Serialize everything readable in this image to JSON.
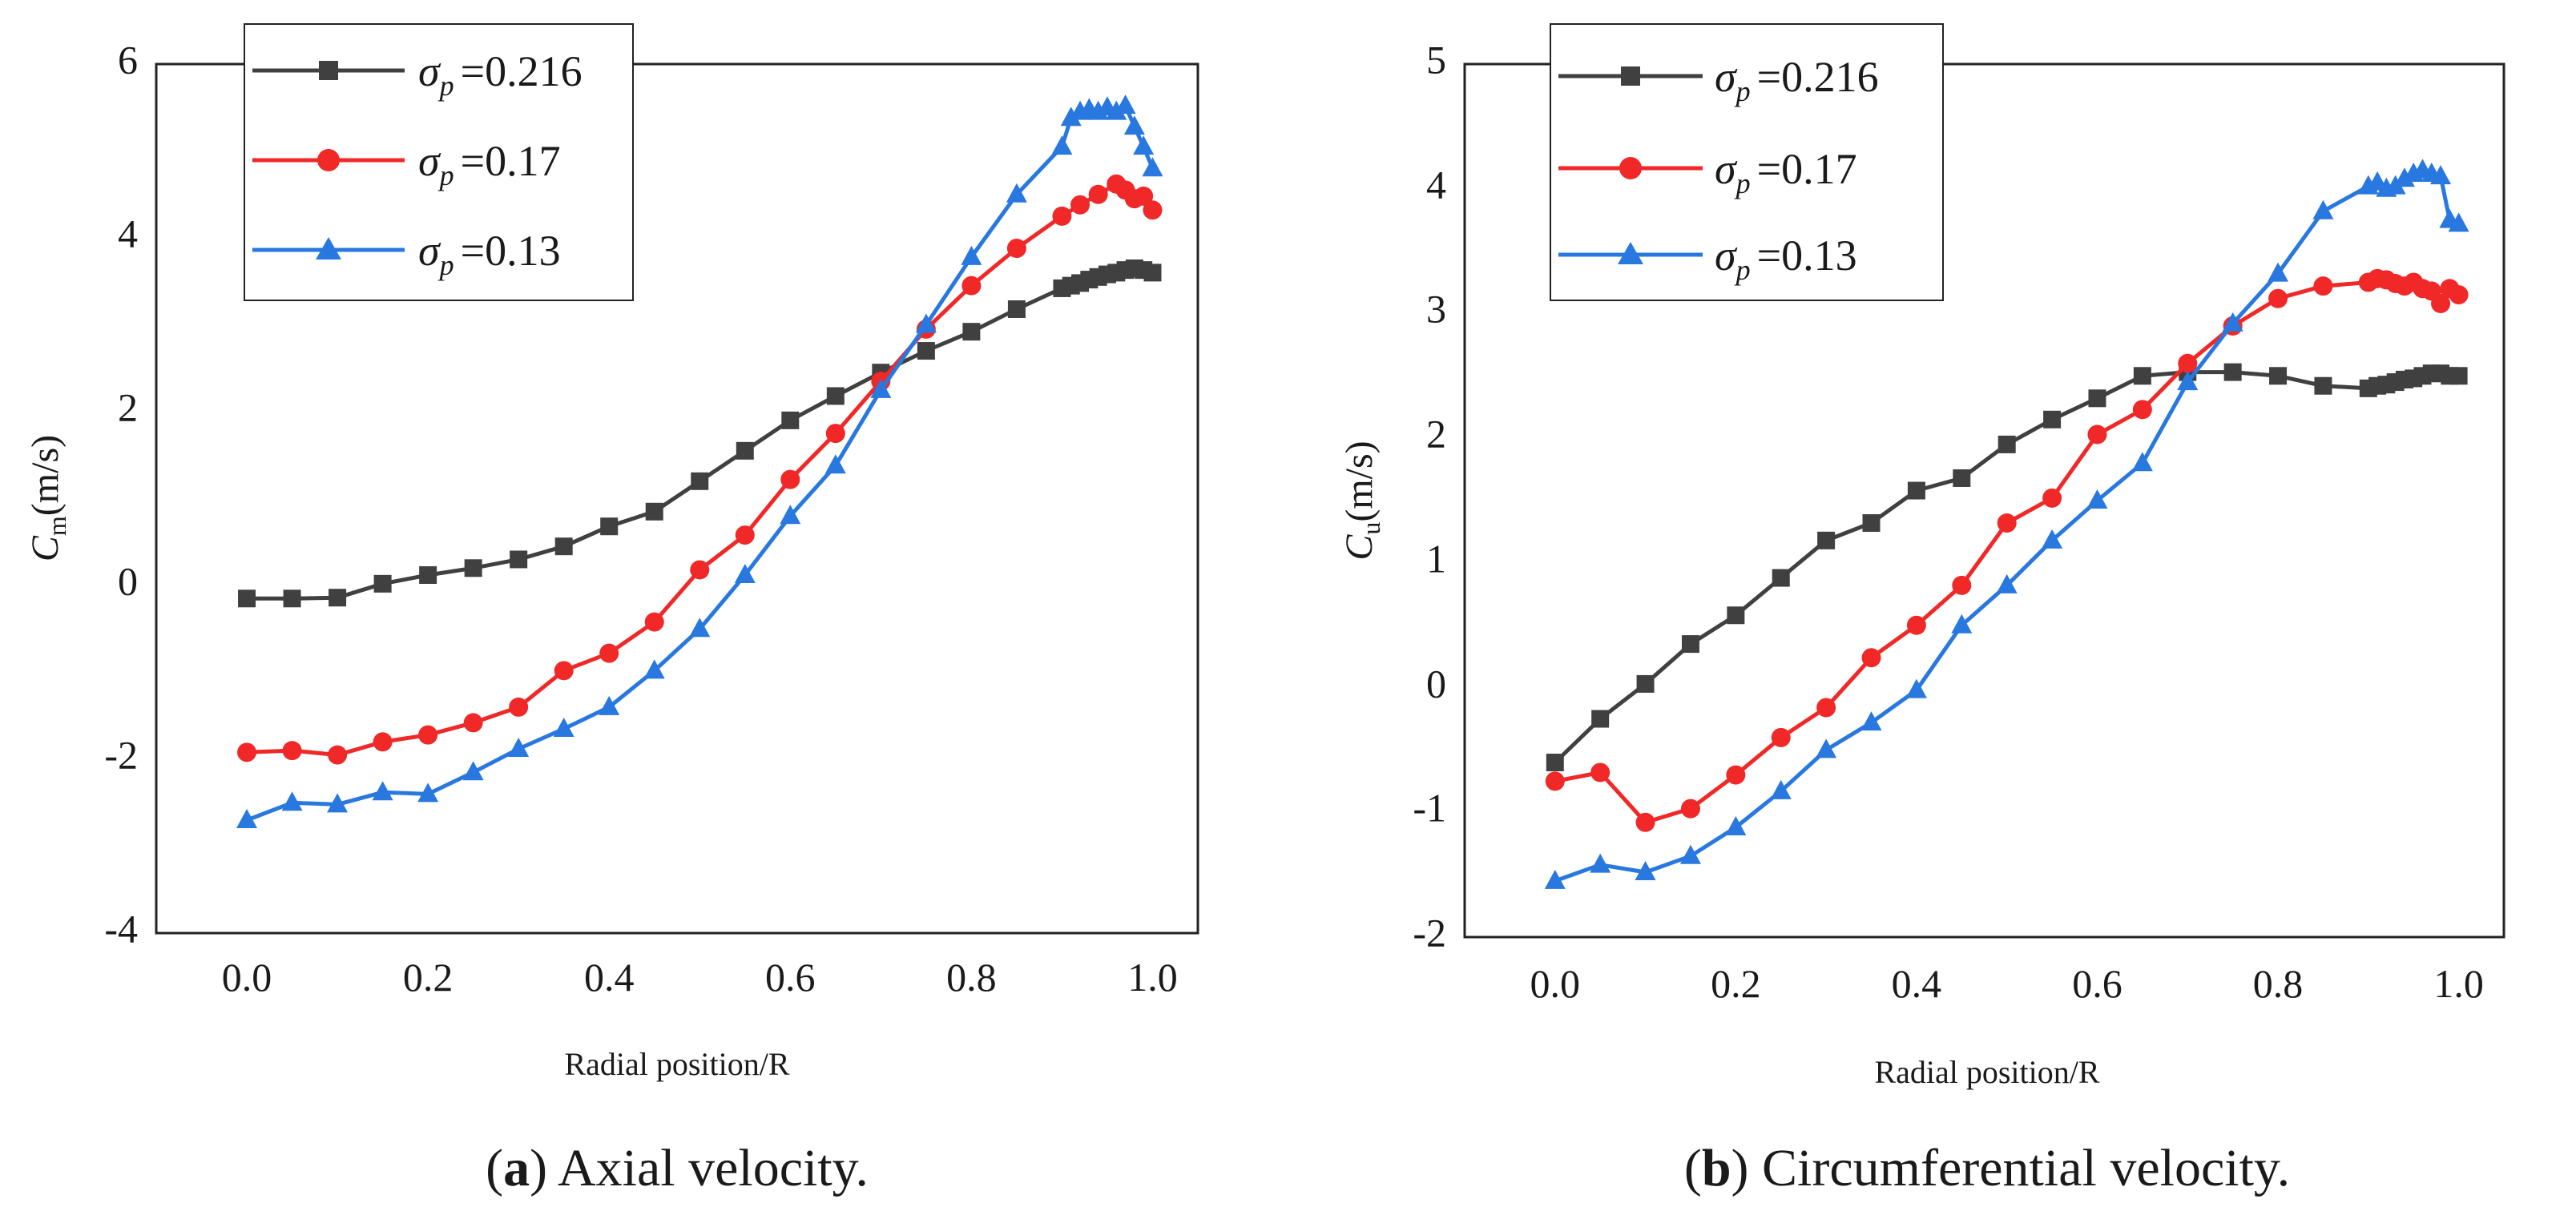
{
  "chart_data": [
    {
      "type": "line",
      "panel": "a",
      "caption_letter": "a",
      "caption_text": "Axial velocity.",
      "xlabel": "Radial position/R",
      "ylabel_main": "C",
      "ylabel_sub": "m",
      "ylabel_unit": "(m/s)",
      "xlim": [
        -0.1,
        1.05
      ],
      "ylim": [
        -4,
        6
      ],
      "xticks": [
        0.0,
        0.2,
        0.4,
        0.6,
        0.8,
        1.0
      ],
      "xtick_labels": [
        "0.0",
        "0.2",
        "0.4",
        "0.6",
        "0.8",
        "1.0"
      ],
      "yticks": [
        -4,
        -2,
        0,
        2,
        4,
        6
      ],
      "ytick_labels": [
        "-4",
        "-2",
        "0",
        "2",
        "4",
        "6"
      ],
      "legend": {
        "position": "top-left",
        "symbol": "σ",
        "subscript": "p",
        "values": [
          "=0.216",
          "=0.17",
          "=0.13"
        ]
      },
      "series": [
        {
          "name": "σp=0.216",
          "color": "#404040",
          "marker": "square",
          "x": [
            0.0,
            0.05,
            0.1,
            0.15,
            0.2,
            0.25,
            0.3,
            0.35,
            0.4,
            0.45,
            0.5,
            0.55,
            0.6,
            0.65,
            0.7,
            0.75,
            0.8,
            0.85,
            0.9,
            0.91,
            0.92,
            0.93,
            0.94,
            0.95,
            0.96,
            0.97,
            0.98,
            0.99,
            1.0
          ],
          "y": [
            -0.15,
            -0.15,
            -0.14,
            0.02,
            0.12,
            0.2,
            0.3,
            0.45,
            0.68,
            0.85,
            1.2,
            1.55,
            1.9,
            2.18,
            2.45,
            2.7,
            2.92,
            3.18,
            3.42,
            3.45,
            3.48,
            3.52,
            3.55,
            3.58,
            3.6,
            3.63,
            3.65,
            3.63,
            3.6
          ]
        },
        {
          "name": "σp=0.17",
          "color": "#f02828",
          "marker": "circle",
          "x": [
            0.0,
            0.05,
            0.1,
            0.15,
            0.2,
            0.25,
            0.3,
            0.35,
            0.4,
            0.45,
            0.5,
            0.55,
            0.6,
            0.65,
            0.7,
            0.75,
            0.8,
            0.85,
            0.9,
            0.92,
            0.94,
            0.96,
            0.97,
            0.98,
            0.99,
            1.0
          ],
          "y": [
            -1.92,
            -1.9,
            -1.95,
            -1.8,
            -1.72,
            -1.58,
            -1.4,
            -0.98,
            -0.78,
            -0.42,
            0.18,
            0.58,
            1.22,
            1.75,
            2.35,
            2.95,
            3.45,
            3.88,
            4.25,
            4.38,
            4.5,
            4.62,
            4.55,
            4.45,
            4.48,
            4.32
          ]
        },
        {
          "name": "σp=0.13",
          "color": "#2878e0",
          "marker": "triangle",
          "x": [
            0.0,
            0.05,
            0.1,
            0.15,
            0.2,
            0.25,
            0.3,
            0.35,
            0.4,
            0.45,
            0.5,
            0.55,
            0.6,
            0.65,
            0.7,
            0.75,
            0.8,
            0.85,
            0.9,
            0.91,
            0.92,
            0.93,
            0.94,
            0.95,
            0.96,
            0.97,
            0.98,
            0.99,
            1.0
          ],
          "y": [
            -2.7,
            -2.5,
            -2.52,
            -2.38,
            -2.4,
            -2.15,
            -1.88,
            -1.65,
            -1.4,
            -0.98,
            -0.5,
            0.12,
            0.8,
            1.38,
            2.25,
            3.0,
            3.78,
            4.5,
            5.05,
            5.38,
            5.45,
            5.48,
            5.45,
            5.5,
            5.45,
            5.52,
            5.28,
            5.05,
            4.8
          ]
        }
      ]
    },
    {
      "type": "line",
      "panel": "b",
      "caption_letter": "b",
      "caption_text": "Circumferential velocity.",
      "xlabel": "Radial position/R",
      "ylabel_main": "C",
      "ylabel_sub": "u",
      "ylabel_unit": "(m/s)",
      "xlim": [
        -0.1,
        1.05
      ],
      "ylim": [
        -2,
        5
      ],
      "xticks": [
        0.0,
        0.2,
        0.4,
        0.6,
        0.8,
        1.0
      ],
      "xtick_labels": [
        "0.0",
        "0.2",
        "0.4",
        "0.6",
        "0.8",
        "1.0"
      ],
      "yticks": [
        -2,
        -1,
        0,
        1,
        2,
        3,
        4,
        5
      ],
      "ytick_labels": [
        "-2",
        "-1",
        "0",
        "1",
        "2",
        "3",
        "4",
        "5"
      ],
      "legend": {
        "position": "top-left",
        "symbol": "σ",
        "subscript": "p",
        "values": [
          "=0.216",
          "=0.17",
          "=0.13"
        ]
      },
      "series": [
        {
          "name": "σp=0.216",
          "color": "#404040",
          "marker": "square",
          "x": [
            0.0,
            0.05,
            0.1,
            0.15,
            0.2,
            0.25,
            0.3,
            0.35,
            0.4,
            0.45,
            0.5,
            0.55,
            0.6,
            0.65,
            0.7,
            0.75,
            0.8,
            0.85,
            0.9,
            0.91,
            0.92,
            0.93,
            0.94,
            0.95,
            0.96,
            0.97,
            0.98,
            0.99,
            1.0
          ],
          "y": [
            -0.6,
            -0.25,
            0.03,
            0.35,
            0.58,
            0.88,
            1.18,
            1.32,
            1.58,
            1.68,
            1.95,
            2.15,
            2.32,
            2.5,
            2.53,
            2.53,
            2.5,
            2.42,
            2.4,
            2.42,
            2.43,
            2.45,
            2.47,
            2.48,
            2.5,
            2.52,
            2.52,
            2.5,
            2.5
          ]
        },
        {
          "name": "σp=0.17",
          "color": "#f02828",
          "marker": "circle",
          "x": [
            0.0,
            0.05,
            0.1,
            0.15,
            0.2,
            0.25,
            0.3,
            0.35,
            0.4,
            0.45,
            0.5,
            0.55,
            0.6,
            0.65,
            0.7,
            0.75,
            0.8,
            0.85,
            0.9,
            0.91,
            0.92,
            0.93,
            0.94,
            0.95,
            0.96,
            0.97,
            0.98,
            0.99,
            1.0
          ],
          "y": [
            -0.75,
            -0.68,
            -1.08,
            -0.97,
            -0.7,
            -0.4,
            -0.16,
            0.24,
            0.5,
            0.82,
            1.32,
            1.52,
            2.03,
            2.23,
            2.6,
            2.9,
            3.12,
            3.22,
            3.25,
            3.28,
            3.27,
            3.24,
            3.22,
            3.25,
            3.2,
            3.18,
            3.08,
            3.2,
            3.15
          ]
        },
        {
          "name": "σp=0.13",
          "color": "#2878e0",
          "marker": "triangle",
          "x": [
            0.0,
            0.05,
            0.1,
            0.15,
            0.2,
            0.25,
            0.3,
            0.35,
            0.4,
            0.45,
            0.5,
            0.55,
            0.6,
            0.65,
            0.7,
            0.75,
            0.8,
            0.85,
            0.9,
            0.91,
            0.92,
            0.93,
            0.94,
            0.95,
            0.96,
            0.97,
            0.98,
            0.99,
            1.0
          ],
          "y": [
            -1.55,
            -1.42,
            -1.48,
            -1.35,
            -1.12,
            -0.83,
            -0.5,
            -0.28,
            -0.02,
            0.5,
            0.82,
            1.18,
            1.5,
            1.8,
            2.45,
            2.92,
            3.32,
            3.82,
            4.02,
            4.05,
            4.0,
            4.02,
            4.08,
            4.12,
            4.15,
            4.12,
            4.1,
            3.75,
            3.72
          ]
        }
      ]
    }
  ]
}
